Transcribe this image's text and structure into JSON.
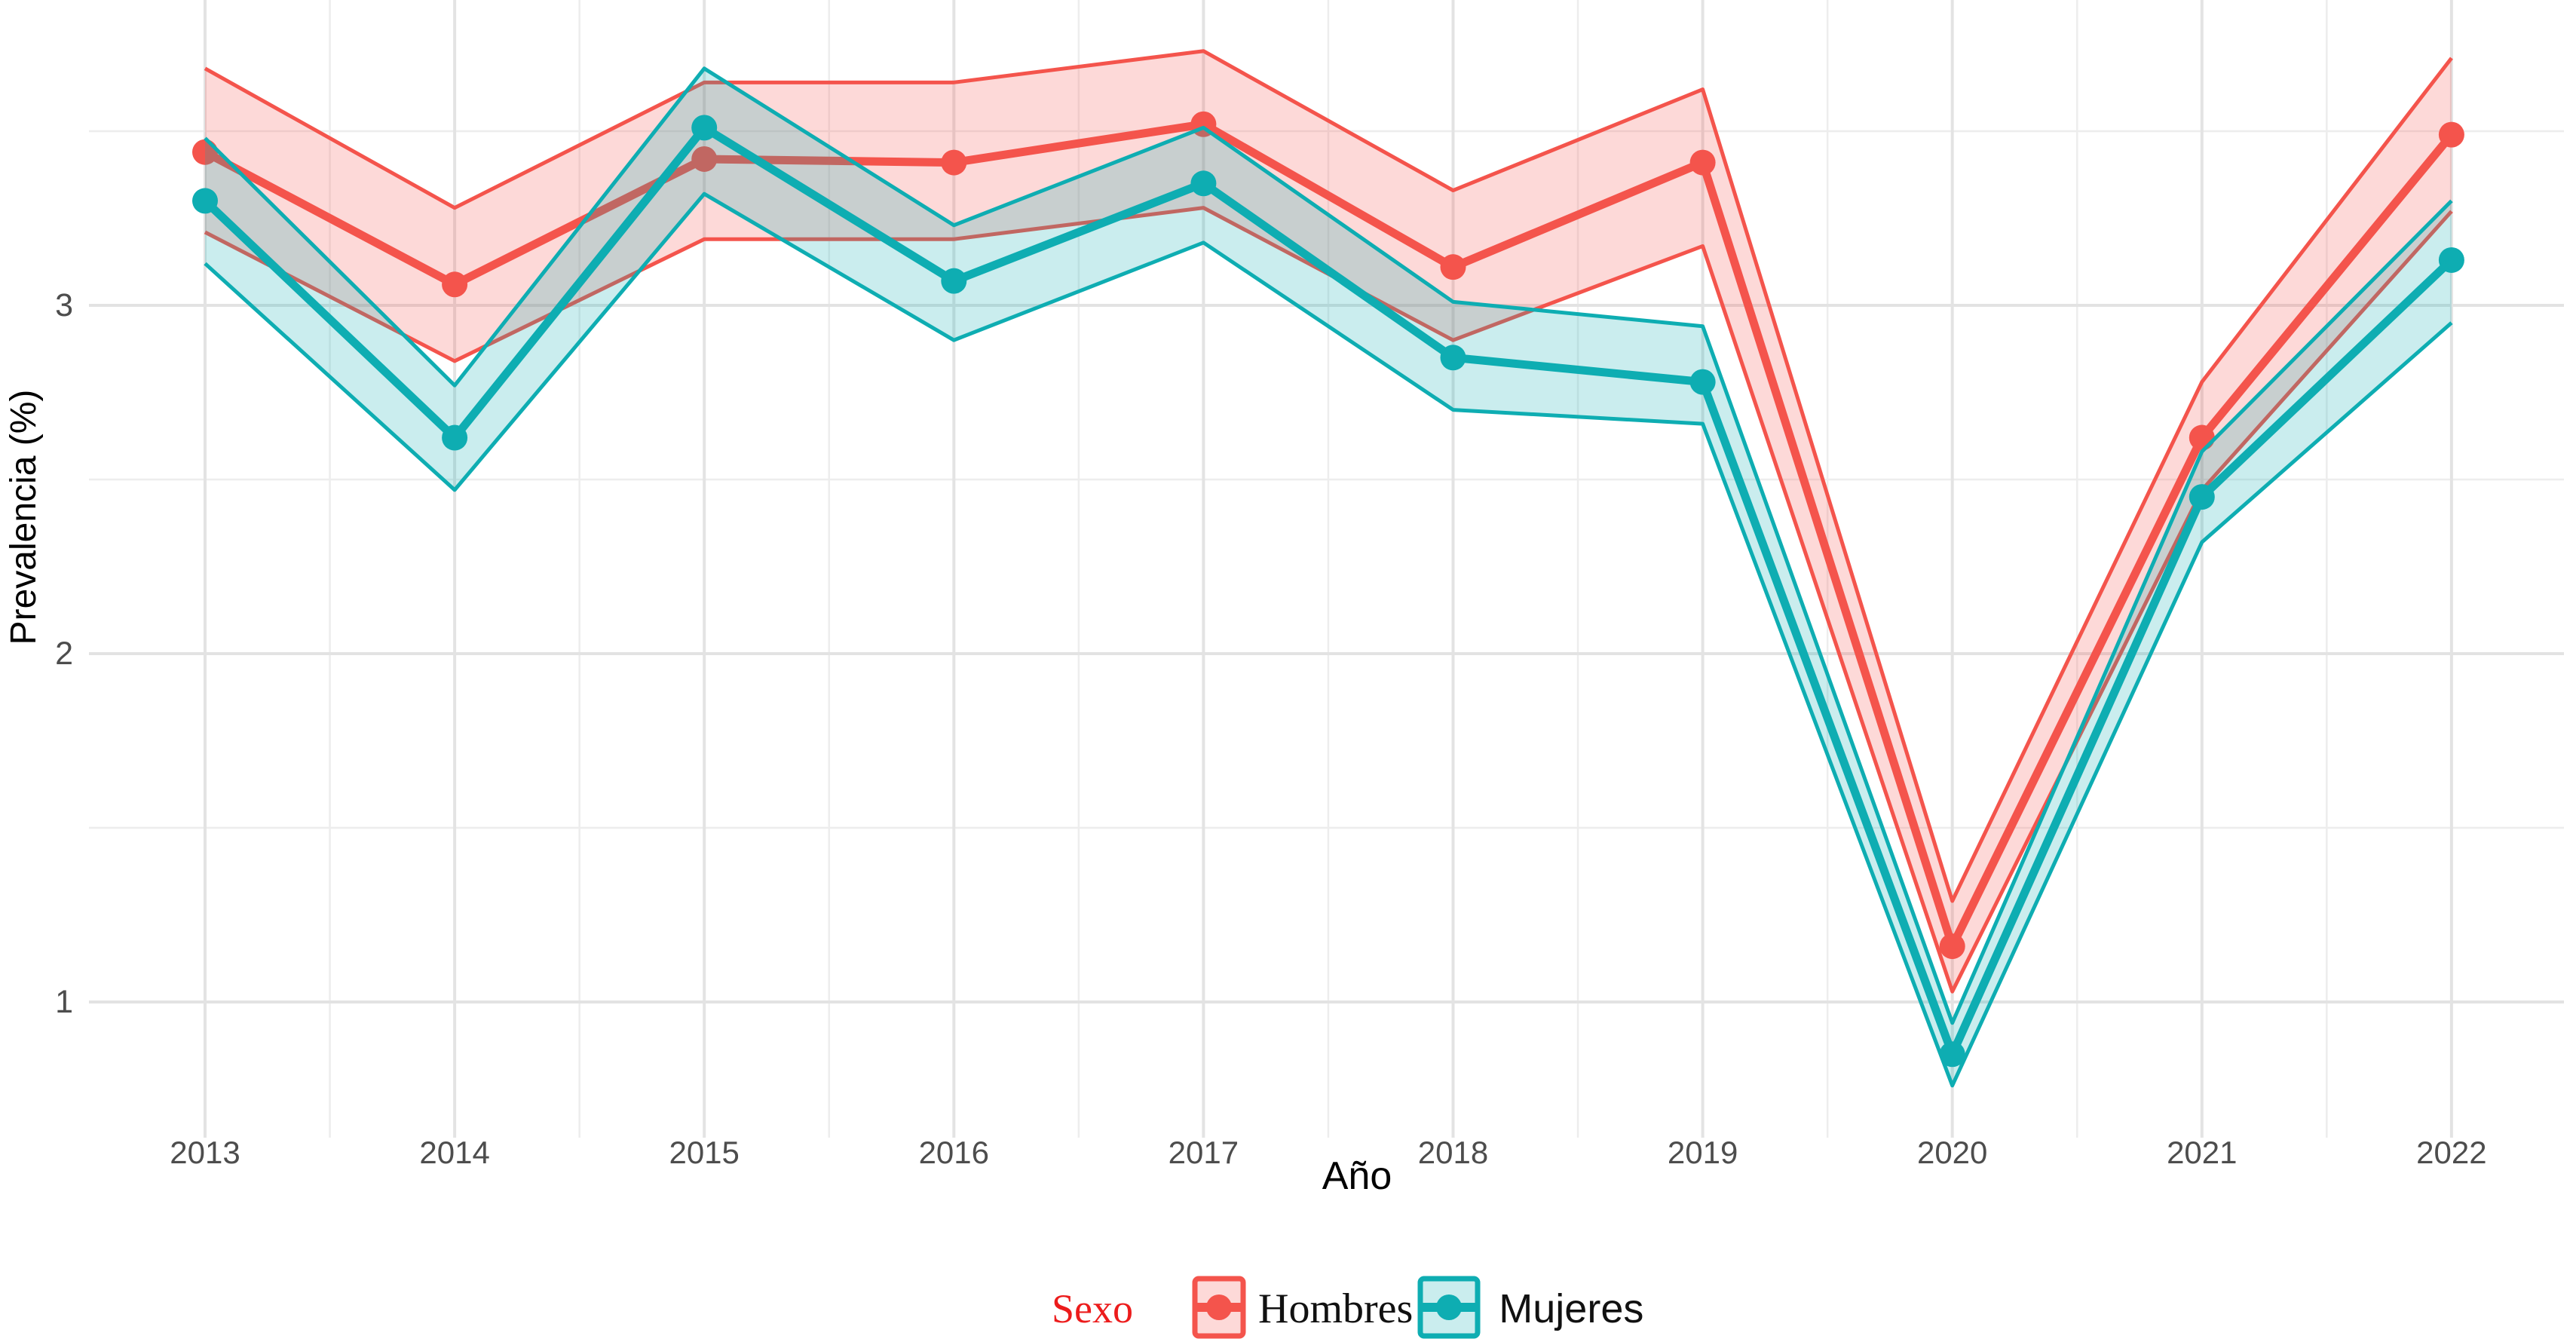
{
  "chart_data": {
    "type": "line",
    "title": "",
    "xlabel": "Año",
    "ylabel": "Prevalencia (%)",
    "x": [
      2013,
      2014,
      2015,
      2016,
      2017,
      2018,
      2019,
      2020,
      2021,
      2022
    ],
    "y_ticks": [
      1,
      2,
      3
    ],
    "ylim": [
      0.61,
      3.88
    ],
    "grid": true,
    "minor_grid": true,
    "series": [
      {
        "name": "Hombres",
        "color": "#F4544C",
        "values": [
          3.44,
          3.06,
          3.42,
          3.41,
          3.52,
          3.11,
          3.41,
          1.16,
          2.62,
          3.49
        ],
        "ci_lower": [
          3.21,
          2.84,
          3.19,
          3.19,
          3.28,
          2.9,
          3.17,
          1.03,
          2.47,
          3.27
        ],
        "ci_upper": [
          3.68,
          3.28,
          3.64,
          3.64,
          3.73,
          3.33,
          3.62,
          1.29,
          2.78,
          3.71
        ]
      },
      {
        "name": "Mujeres",
        "color": "#0EADB2",
        "values": [
          3.3,
          2.62,
          3.51,
          3.07,
          3.35,
          2.85,
          2.78,
          0.85,
          2.45,
          3.13
        ],
        "ci_lower": [
          3.12,
          2.47,
          3.32,
          2.9,
          3.18,
          2.7,
          2.66,
          0.76,
          2.32,
          2.95
        ],
        "ci_upper": [
          3.48,
          2.77,
          3.68,
          3.23,
          3.51,
          3.01,
          2.94,
          0.94,
          2.58,
          3.3
        ]
      }
    ],
    "legend": {
      "title": "Sexo",
      "items": [
        "Hombres",
        "Mujeres"
      ],
      "position": "bottom"
    },
    "colors": {
      "legend_title": "#EC1C1C",
      "tick_text": "#4D4D4D",
      "grid_major": "#E3E3E3",
      "grid_minor": "#EDEDED",
      "ribbon_opacity": 0.22
    }
  }
}
